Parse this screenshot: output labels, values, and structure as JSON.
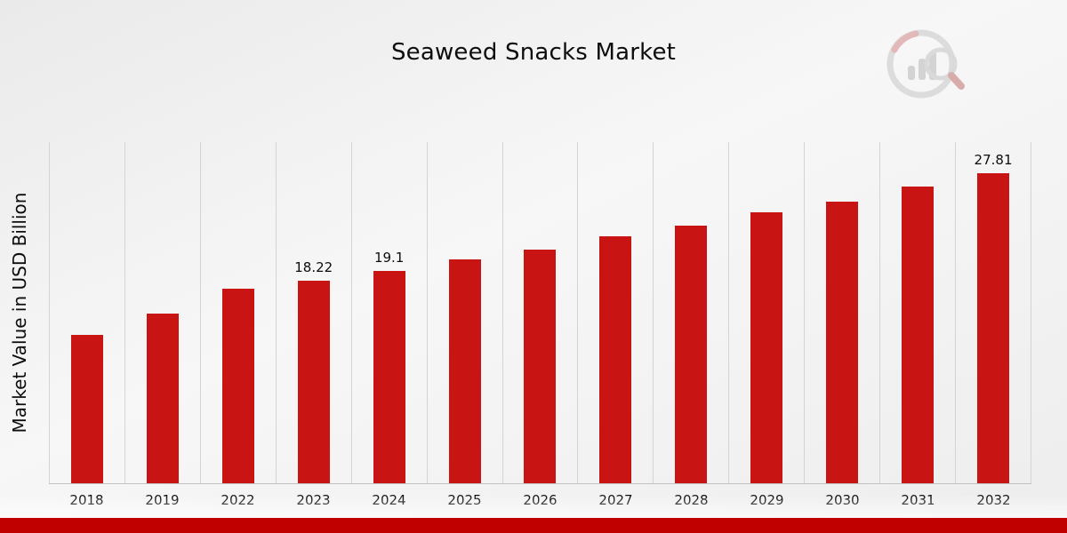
{
  "title": "Seaweed Snacks Market",
  "y_axis_label": "Market Value in USD Billion",
  "chart_data": {
    "type": "bar",
    "title": "Seaweed Snacks Market",
    "xlabel": "",
    "ylabel": "Market Value in USD Billion",
    "categories": [
      "2018",
      "2019",
      "2022",
      "2023",
      "2024",
      "2025",
      "2026",
      "2027",
      "2028",
      "2029",
      "2030",
      "2031",
      "2032"
    ],
    "values": [
      13.3,
      15.2,
      17.5,
      18.22,
      19.1,
      20.1,
      21.0,
      22.2,
      23.1,
      24.3,
      25.3,
      26.6,
      27.81
    ],
    "shown_data_labels": {
      "2023": "18.22",
      "2024": "19.1",
      "2032": "27.81"
    },
    "bar_color": "#c91414",
    "ylim": [
      0,
      30.7
    ],
    "grid": "vertical-only",
    "legend": "none"
  },
  "logo": {
    "name": "market-research-future-logo"
  },
  "footer": {
    "bar_color": "#c00000"
  }
}
